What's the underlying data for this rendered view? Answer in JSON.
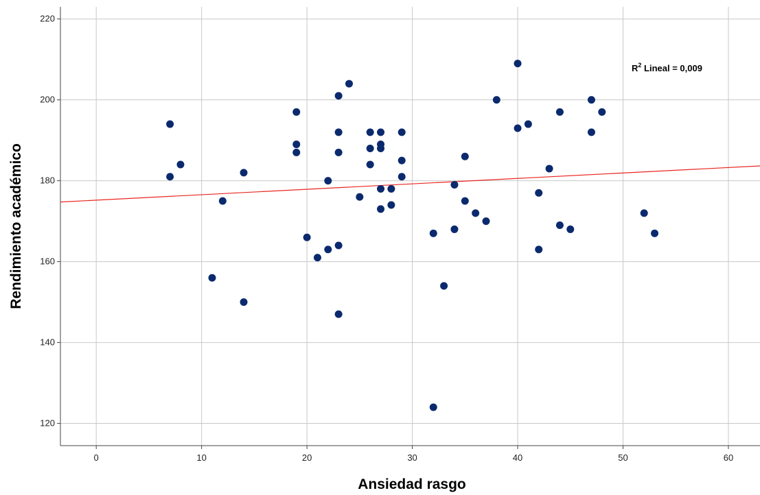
{
  "chart_data": {
    "type": "scatter",
    "xlabel": "Ansiedad rasgo",
    "ylabel": "Rendimiento académico",
    "xlim": [
      -3.4,
      63
    ],
    "ylim": [
      114.5,
      223
    ],
    "xticks": [
      0,
      10,
      20,
      30,
      40,
      50,
      60
    ],
    "yticks": [
      120,
      140,
      160,
      180,
      200,
      220
    ],
    "grid": true,
    "annotation": {
      "prefix": "R",
      "superscript": "2",
      "text": " Lineal = 0,009"
    },
    "fit_line": {
      "intercept": 175.2,
      "slope": 0.1345,
      "color": "#e8251f"
    },
    "marker_color": "#0b2a6e",
    "points": [
      [
        7,
        194
      ],
      [
        7,
        181
      ],
      [
        8,
        184
      ],
      [
        11,
        156
      ],
      [
        12,
        175
      ],
      [
        14,
        182
      ],
      [
        14,
        150
      ],
      [
        19,
        197
      ],
      [
        19,
        189
      ],
      [
        19,
        187
      ],
      [
        20,
        166
      ],
      [
        21,
        161
      ],
      [
        22,
        180
      ],
      [
        22,
        163
      ],
      [
        23,
        201
      ],
      [
        23,
        192
      ],
      [
        23,
        187
      ],
      [
        23,
        164
      ],
      [
        23,
        147
      ],
      [
        24,
        204
      ],
      [
        25,
        176
      ],
      [
        26,
        192
      ],
      [
        26,
        188
      ],
      [
        26,
        184
      ],
      [
        27,
        192
      ],
      [
        27,
        189
      ],
      [
        27,
        188
      ],
      [
        27,
        178
      ],
      [
        27,
        173
      ],
      [
        28,
        178
      ],
      [
        28,
        174
      ],
      [
        29,
        192
      ],
      [
        29,
        185
      ],
      [
        29,
        181
      ],
      [
        32,
        167
      ],
      [
        32,
        124
      ],
      [
        33,
        154
      ],
      [
        34,
        179
      ],
      [
        34,
        168
      ],
      [
        35,
        186
      ],
      [
        35,
        175
      ],
      [
        36,
        172
      ],
      [
        37,
        170
      ],
      [
        38,
        200
      ],
      [
        40,
        209
      ],
      [
        40,
        193
      ],
      [
        41,
        194
      ],
      [
        42,
        177
      ],
      [
        42,
        163
      ],
      [
        43,
        183
      ],
      [
        44,
        197
      ],
      [
        44,
        169
      ],
      [
        45,
        168
      ],
      [
        47,
        200
      ],
      [
        47,
        192
      ],
      [
        48,
        197
      ],
      [
        52,
        172
      ],
      [
        53,
        167
      ]
    ]
  }
}
